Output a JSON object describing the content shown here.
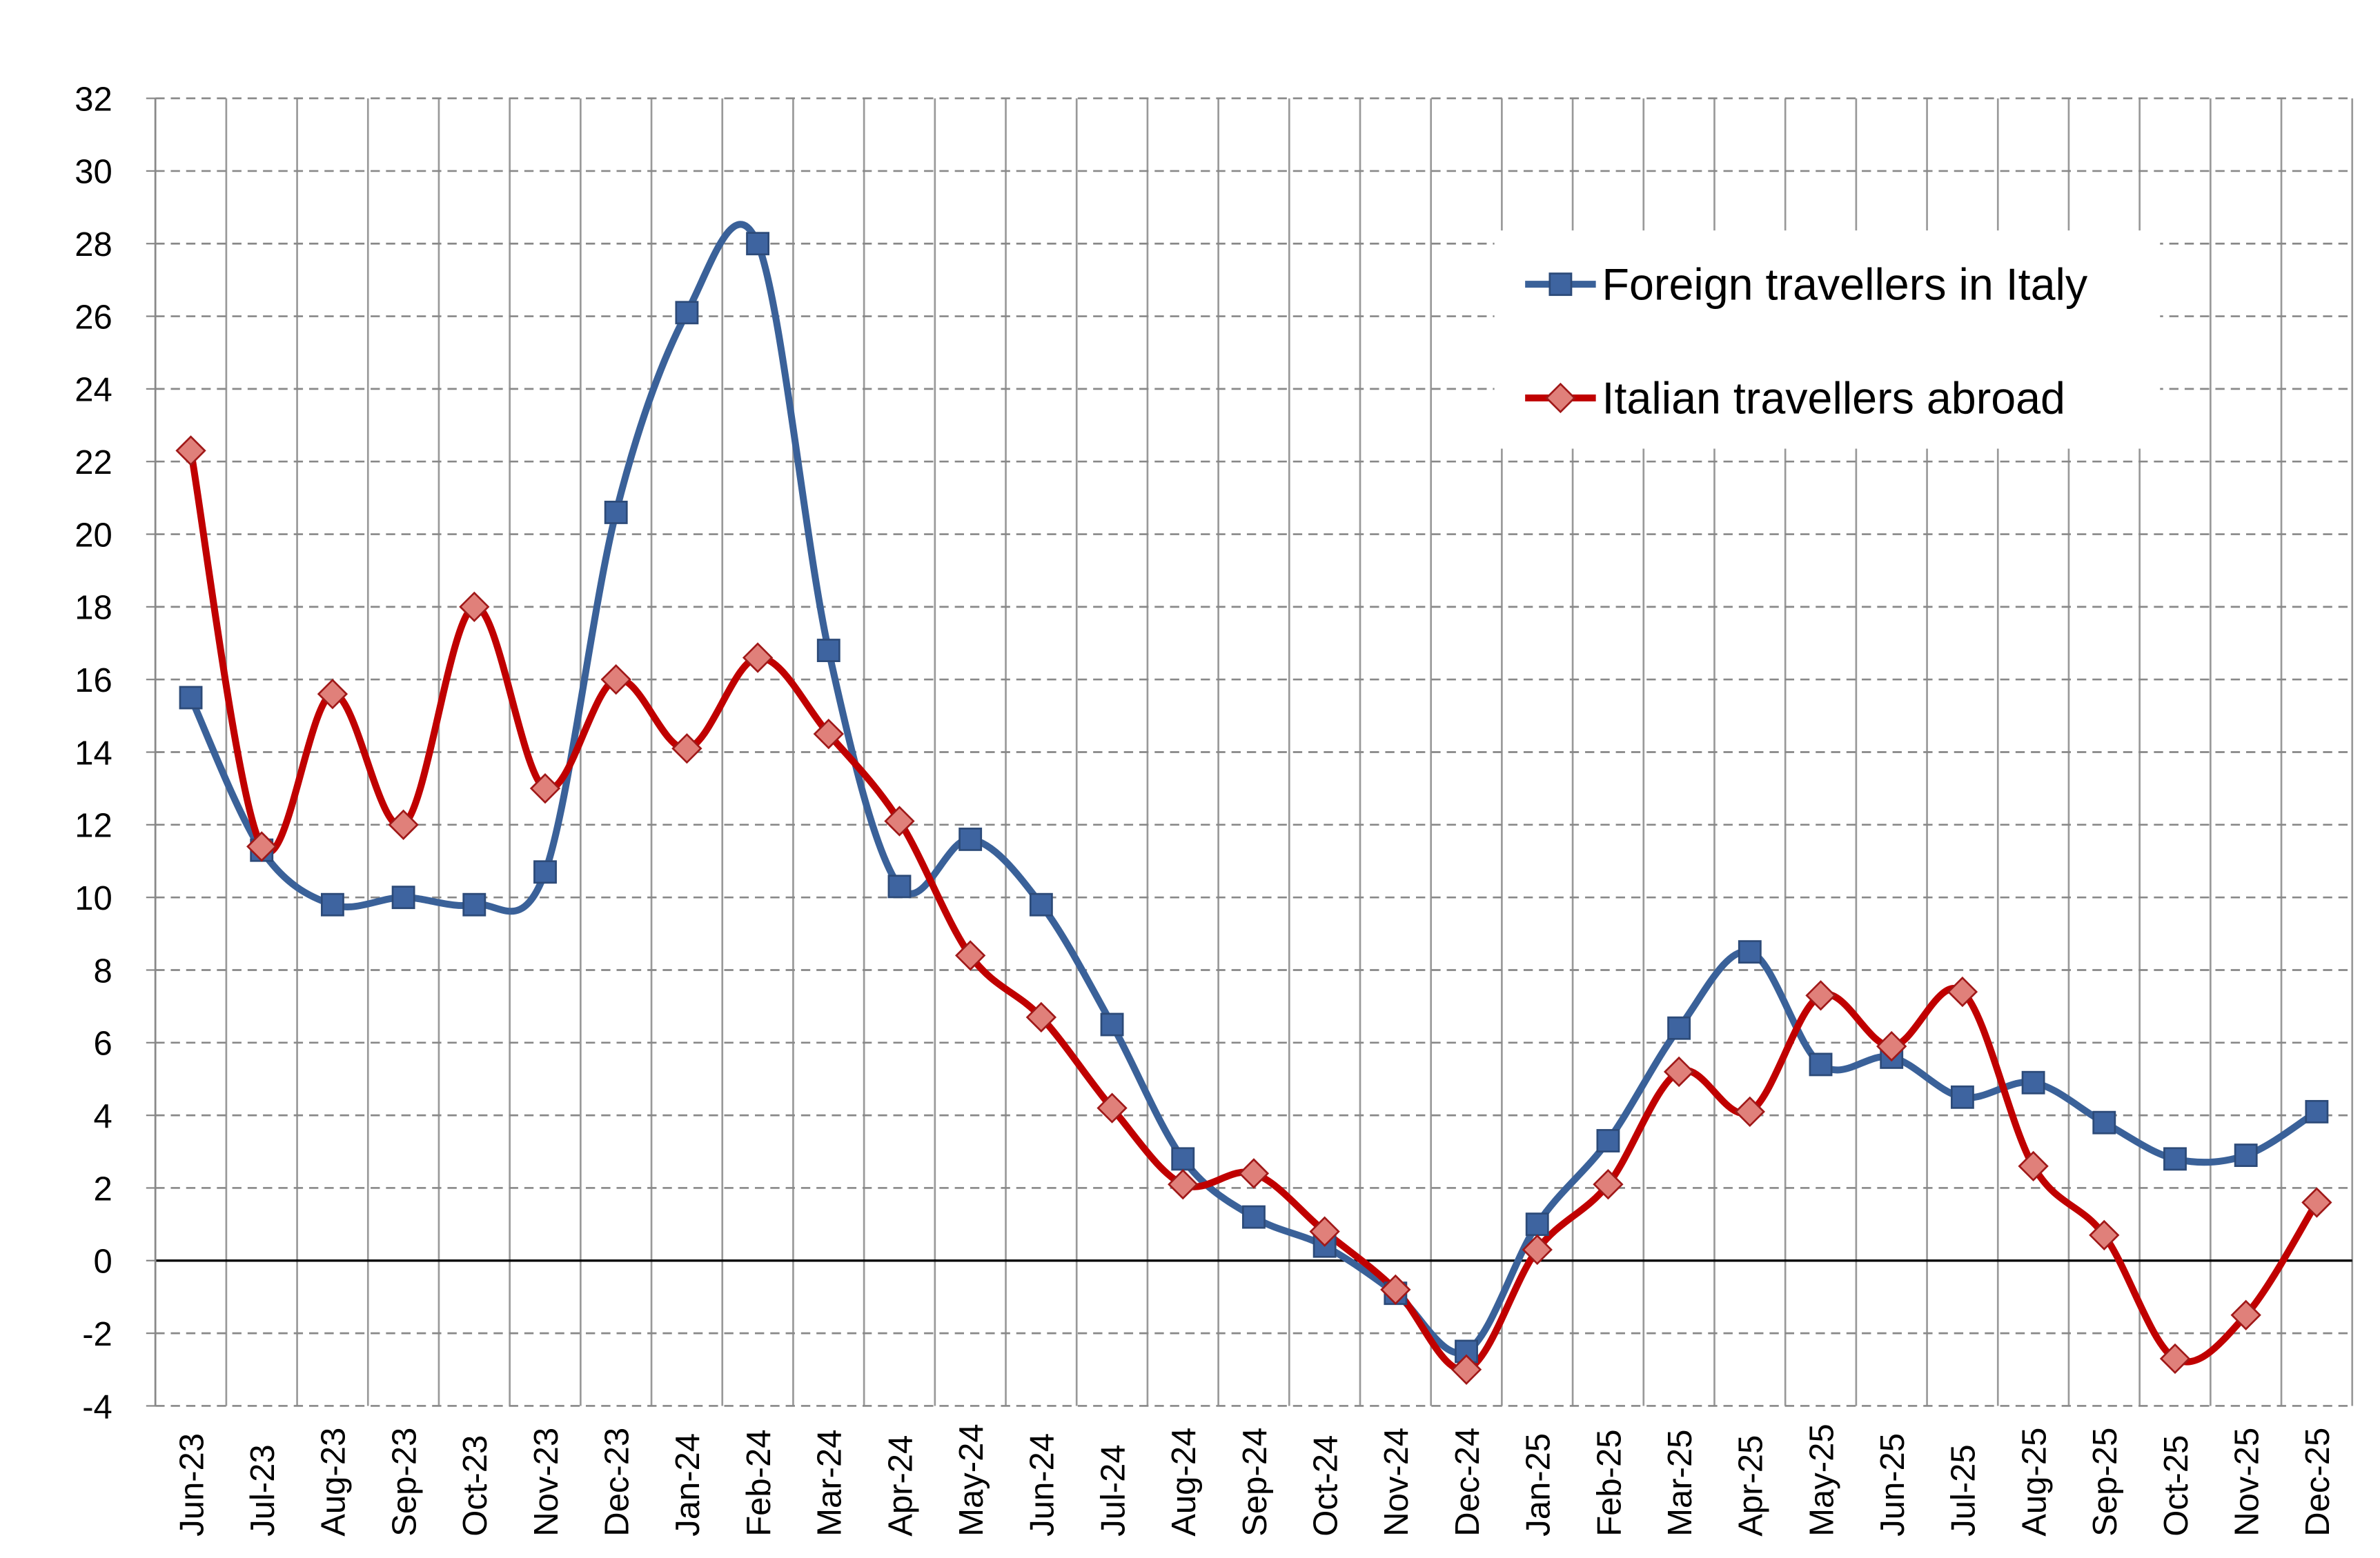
{
  "chart_data": {
    "type": "line",
    "categories": [
      "Jun-23",
      "Jul-23",
      "Aug-23",
      "Sep-23",
      "Oct-23",
      "Nov-23",
      "Dec-23",
      "Jan-24",
      "Feb-24",
      "Mar-24",
      "Apr-24",
      "May-24",
      "Jun-24",
      "Jul-24",
      "Aug-24",
      "Sep-24",
      "Oct-24",
      "Nov-24",
      "Dec-24",
      "Jan-25",
      "Feb-25",
      "Mar-25",
      "Apr-25",
      "May-25",
      "Jun-25",
      "Jul-25",
      "Aug-25",
      "Sep-25",
      "Oct-25",
      "Nov-25",
      "Dec-25"
    ],
    "series": [
      {
        "name": "Foreign travellers in Italy",
        "color": "#3a6199",
        "marker": "square",
        "values": [
          15.5,
          11.3,
          9.8,
          10.0,
          9.8,
          10.7,
          20.6,
          26.1,
          28.0,
          16.8,
          10.3,
          11.6,
          9.8,
          6.5,
          2.8,
          1.2,
          0.4,
          -0.9,
          -2.5,
          1.0,
          3.3,
          6.4,
          8.5,
          5.4,
          5.6,
          4.5,
          4.9,
          3.8,
          2.8,
          2.9,
          4.1
        ]
      },
      {
        "name": "Italian travellers abroad",
        "color": "#c00000",
        "marker": "diamond",
        "values": [
          22.3,
          11.4,
          15.6,
          12.0,
          18.0,
          13.0,
          16.0,
          14.1,
          16.6,
          14.5,
          12.1,
          8.4,
          6.7,
          4.2,
          2.1,
          2.4,
          0.8,
          -0.8,
          -3.0,
          0.3,
          2.1,
          5.2,
          4.1,
          7.3,
          5.9,
          7.4,
          2.6,
          0.7,
          -2.7,
          -1.5,
          1.6
        ]
      }
    ],
    "ylim": [
      -4,
      32
    ],
    "yticks": [
      -4,
      -2,
      0,
      2,
      4,
      6,
      8,
      10,
      12,
      14,
      16,
      18,
      20,
      22,
      24,
      26,
      28,
      30,
      32
    ],
    "grid": true,
    "smooth": true,
    "legend": "upper right"
  }
}
